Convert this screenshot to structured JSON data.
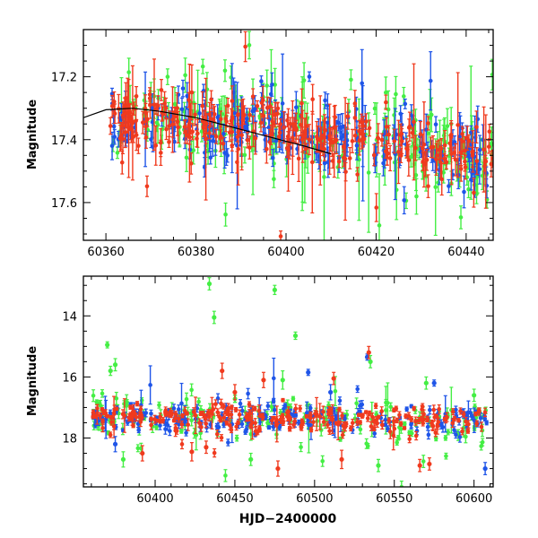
{
  "figure": {
    "xlabel": "HJD−2400000",
    "colors": {
      "green": "#44ee44",
      "blue": "#1f55e8",
      "red": "#f03a1e",
      "model": "#000000",
      "frame": "#000000"
    }
  },
  "chart_data": [
    {
      "type": "scatter",
      "title": "",
      "xlabel": "",
      "ylabel": "Magnitude",
      "xlim": [
        60355,
        60446
      ],
      "ylim": [
        17.72,
        17.05
      ],
      "y_inverted": true,
      "xticks": [
        60360,
        60380,
        60400,
        60420,
        60440
      ],
      "yticks": [
        17.2,
        17.4,
        17.6
      ],
      "model_curve": {
        "x": [
          60355,
          60360,
          60366,
          60372,
          60380,
          60388,
          60396,
          60404,
          60410
        ],
        "y": [
          17.33,
          17.305,
          17.3,
          17.31,
          17.33,
          17.36,
          17.39,
          17.42,
          17.445
        ]
      },
      "series": [
        {
          "color": "green",
          "x_range": [
            60361,
            60446
          ],
          "mean": [
            17.32,
            17.45
          ],
          "scatter": 0.07,
          "err": 0.035,
          "count": 220
        },
        {
          "color": "blue",
          "x_range": [
            60361,
            60446
          ],
          "mean": [
            17.32,
            17.45
          ],
          "scatter": 0.05,
          "err": 0.03,
          "count": 230
        },
        {
          "color": "red",
          "x_range": [
            60361,
            60446
          ],
          "mean": [
            17.32,
            17.45
          ],
          "scatter": 0.05,
          "err": 0.03,
          "count": 280
        }
      ]
    },
    {
      "type": "scatter",
      "title": "",
      "xlabel": "HJD−2400000",
      "ylabel": "Magnitude",
      "xlim": [
        60355,
        60612
      ],
      "ylim": [
        19.6,
        12.7
      ],
      "y_inverted": true,
      "xticks": [
        60400,
        60450,
        60500,
        60550,
        60600
      ],
      "yticks": [
        14,
        16,
        18
      ],
      "series": [
        {
          "color": "green",
          "x_range": [
            60361,
            60608
          ],
          "mean": [
            17.3,
            17.45
          ],
          "scatter": 0.35,
          "err": 0.12,
          "count": 170
        },
        {
          "color": "blue",
          "x_range": [
            60361,
            60608
          ],
          "mean": [
            17.3,
            17.45
          ],
          "scatter": 0.25,
          "err": 0.1,
          "count": 200
        },
        {
          "color": "red",
          "x_range": [
            60361,
            60608
          ],
          "mean": [
            17.3,
            17.45
          ],
          "scatter": 0.22,
          "err": 0.09,
          "count": 260
        }
      ],
      "outliers": [
        {
          "color": "green",
          "x": 60434,
          "y": 12.95,
          "err": 0.2
        },
        {
          "color": "green",
          "x": 60437,
          "y": 14.05,
          "err": 0.2
        },
        {
          "color": "green",
          "x": 60475,
          "y": 13.15,
          "err": 0.15
        },
        {
          "color": "green",
          "x": 60488,
          "y": 14.65,
          "err": 0.12
        },
        {
          "color": "green",
          "x": 60370,
          "y": 14.95,
          "err": 0.1
        },
        {
          "color": "green",
          "x": 60375,
          "y": 15.6,
          "err": 0.2
        },
        {
          "color": "green",
          "x": 60372,
          "y": 15.8,
          "err": 0.15
        },
        {
          "color": "green",
          "x": 60480,
          "y": 16.1,
          "err": 0.3
        },
        {
          "color": "green",
          "x": 60535,
          "y": 15.5,
          "err": 0.2
        },
        {
          "color": "green",
          "x": 60570,
          "y": 16.2,
          "err": 0.2
        },
        {
          "color": "green",
          "x": 60600,
          "y": 16.6,
          "err": 0.2
        },
        {
          "color": "green",
          "x": 60380,
          "y": 18.7,
          "err": 0.25
        },
        {
          "color": "green",
          "x": 60460,
          "y": 18.7,
          "err": 0.2
        },
        {
          "color": "green",
          "x": 60540,
          "y": 18.9,
          "err": 0.2
        },
        {
          "color": "blue",
          "x": 60533,
          "y": 15.35,
          "err": 0.1
        },
        {
          "color": "blue",
          "x": 60496,
          "y": 15.85,
          "err": 0.1
        },
        {
          "color": "blue",
          "x": 60575,
          "y": 16.2,
          "err": 0.1
        },
        {
          "color": "blue",
          "x": 60607,
          "y": 19.0,
          "err": 0.2
        },
        {
          "color": "blue",
          "x": 60375,
          "y": 18.2,
          "err": 0.25
        },
        {
          "color": "blue",
          "x": 60510,
          "y": 16.5,
          "err": 0.25
        },
        {
          "color": "red",
          "x": 60534,
          "y": 15.2,
          "err": 0.2
        },
        {
          "color": "red",
          "x": 60442,
          "y": 15.8,
          "err": 0.25
        },
        {
          "color": "red",
          "x": 60468,
          "y": 16.1,
          "err": 0.25
        },
        {
          "color": "red",
          "x": 60512,
          "y": 16.05,
          "err": 0.2
        },
        {
          "color": "red",
          "x": 60517,
          "y": 18.7,
          "err": 0.3
        },
        {
          "color": "red",
          "x": 60477,
          "y": 19.0,
          "err": 0.25
        },
        {
          "color": "red",
          "x": 60566,
          "y": 18.9,
          "err": 0.2
        },
        {
          "color": "red",
          "x": 60572,
          "y": 18.85,
          "err": 0.2
        },
        {
          "color": "red",
          "x": 60423,
          "y": 18.45,
          "err": 0.3
        },
        {
          "color": "red",
          "x": 60392,
          "y": 18.5,
          "err": 0.25
        },
        {
          "color": "red",
          "x": 60432,
          "y": 18.3,
          "err": 0.2
        },
        {
          "color": "red",
          "x": 60450,
          "y": 16.5,
          "err": 0.25
        }
      ]
    }
  ]
}
